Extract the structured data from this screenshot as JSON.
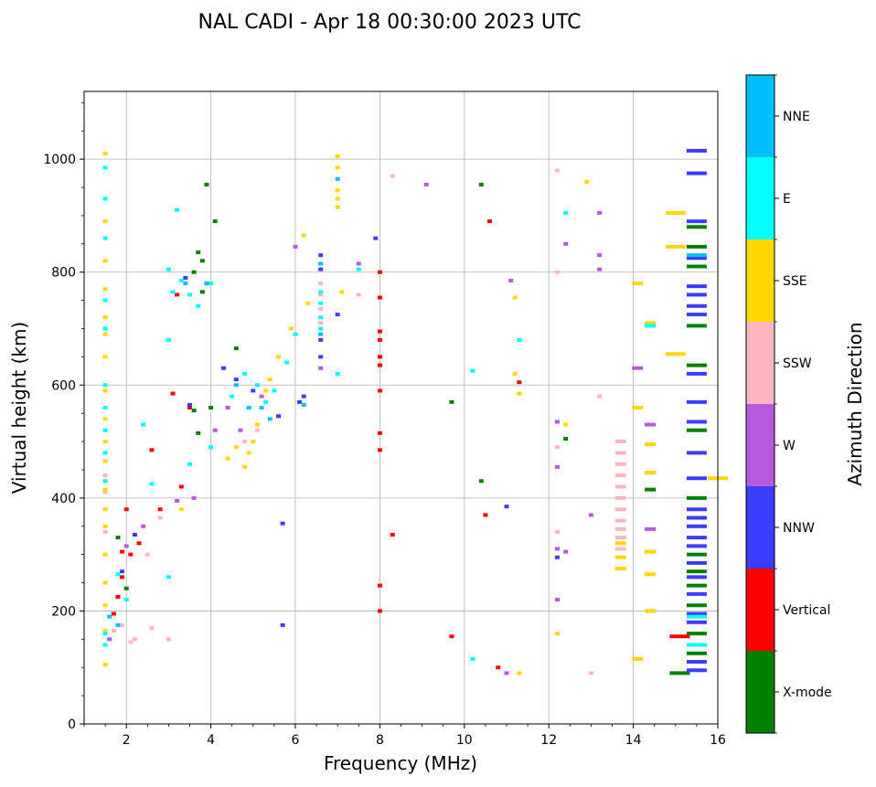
{
  "chart_data": {
    "type": "scatter",
    "title": "NAL CADI - Apr 18 00:30:00 2023 UTC",
    "xlabel": "Frequency (MHz)",
    "ylabel": "Virtual height (km)",
    "xlim": [
      1,
      16
    ],
    "ylim": [
      0,
      1120
    ],
    "xticks": [
      2,
      4,
      6,
      8,
      10,
      12,
      14,
      16
    ],
    "yticks": [
      0,
      200,
      400,
      600,
      800,
      1000
    ],
    "grid": true,
    "colorbar": {
      "title": "Azimuth Direction",
      "categories": [
        {
          "name": "X-mode",
          "color": "#008000"
        },
        {
          "name": "Vertical",
          "color": "#ff0000"
        },
        {
          "name": "NNW",
          "color": "#3c3cff"
        },
        {
          "name": "W",
          "color": "#b45adc"
        },
        {
          "name": "SSW",
          "color": "#ffb6c1"
        },
        {
          "name": "SSE",
          "color": "#ffd700"
        },
        {
          "name": "E",
          "color": "#00ffff"
        },
        {
          "name": "NNE",
          "color": "#00bfff"
        }
      ]
    },
    "series": [
      {
        "name": "X-mode",
        "points": [
          [
            3.9,
            955
          ],
          [
            3.7,
            835
          ],
          [
            3.8,
            820
          ],
          [
            3.6,
            800
          ],
          [
            3.9,
            780
          ],
          [
            3.8,
            765
          ],
          [
            4.1,
            890
          ],
          [
            4.0,
            560
          ],
          [
            4.6,
            665
          ],
          [
            10.4,
            955
          ],
          [
            10.4,
            430
          ],
          [
            14.4,
            415
          ],
          [
            15.1,
            90
          ],
          [
            15.5,
            880
          ],
          [
            15.5,
            845
          ],
          [
            15.5,
            810
          ],
          [
            15.5,
            705
          ],
          [
            15.5,
            635
          ],
          [
            15.5,
            520
          ],
          [
            15.5,
            400
          ],
          [
            15.5,
            300
          ],
          [
            15.5,
            270
          ],
          [
            15.5,
            245
          ],
          [
            15.5,
            210
          ],
          [
            15.5,
            160
          ],
          [
            15.5,
            125
          ],
          [
            12.4,
            505
          ],
          [
            9.7,
            570
          ],
          [
            3.6,
            555
          ],
          [
            3.7,
            515
          ],
          [
            1.8,
            330
          ],
          [
            2.0,
            240
          ]
        ]
      },
      {
        "name": "Vertical",
        "points": [
          [
            2.1,
            300
          ],
          [
            2.3,
            320
          ],
          [
            2.6,
            485
          ],
          [
            2.8,
            380
          ],
          [
            3.1,
            585
          ],
          [
            3.3,
            420
          ],
          [
            2.0,
            380
          ],
          [
            1.7,
            195
          ],
          [
            1.8,
            225
          ],
          [
            1.9,
            260
          ],
          [
            8.0,
            800
          ],
          [
            8.0,
            755
          ],
          [
            8.0,
            695
          ],
          [
            8.0,
            680
          ],
          [
            8.0,
            650
          ],
          [
            8.0,
            635
          ],
          [
            8.0,
            590
          ],
          [
            8.0,
            515
          ],
          [
            8.0,
            485
          ],
          [
            8.0,
            245
          ],
          [
            8.0,
            200
          ],
          [
            8.3,
            335
          ],
          [
            9.7,
            155
          ],
          [
            10.5,
            370
          ],
          [
            10.6,
            890
          ],
          [
            10.8,
            100
          ],
          [
            11.3,
            605
          ],
          [
            15.1,
            155
          ],
          [
            3.5,
            560
          ],
          [
            3.2,
            760
          ],
          [
            1.9,
            305
          ]
        ]
      },
      {
        "name": "NNW",
        "points": [
          [
            3.4,
            790
          ],
          [
            3.5,
            565
          ],
          [
            4.3,
            630
          ],
          [
            4.6,
            610
          ],
          [
            5.0,
            590
          ],
          [
            5.6,
            545
          ],
          [
            6.2,
            580
          ],
          [
            6.1,
            570
          ],
          [
            6.6,
            830
          ],
          [
            6.6,
            805
          ],
          [
            6.6,
            680
          ],
          [
            6.6,
            650
          ],
          [
            5.7,
            175
          ],
          [
            5.7,
            355
          ],
          [
            7.0,
            725
          ],
          [
            7.9,
            860
          ],
          [
            11.0,
            385
          ],
          [
            12.2,
            295
          ],
          [
            15.5,
            1015
          ],
          [
            15.5,
            975
          ],
          [
            15.5,
            890
          ],
          [
            15.5,
            825
          ],
          [
            15.5,
            775
          ],
          [
            15.5,
            760
          ],
          [
            15.5,
            740
          ],
          [
            15.5,
            725
          ],
          [
            15.5,
            620
          ],
          [
            15.5,
            570
          ],
          [
            15.5,
            535
          ],
          [
            15.5,
            480
          ],
          [
            15.5,
            435
          ],
          [
            15.5,
            380
          ],
          [
            15.5,
            365
          ],
          [
            15.5,
            350
          ],
          [
            15.5,
            330
          ],
          [
            15.5,
            315
          ],
          [
            15.5,
            285
          ],
          [
            15.5,
            260
          ],
          [
            15.5,
            230
          ],
          [
            15.5,
            195
          ],
          [
            15.5,
            180
          ],
          [
            15.5,
            110
          ],
          [
            15.5,
            95
          ],
          [
            1.9,
            270
          ],
          [
            2.2,
            335
          ]
        ]
      },
      {
        "name": "W",
        "points": [
          [
            2.0,
            315
          ],
          [
            2.4,
            350
          ],
          [
            3.2,
            395
          ],
          [
            3.6,
            400
          ],
          [
            4.4,
            560
          ],
          [
            4.7,
            520
          ],
          [
            6.0,
            845
          ],
          [
            6.6,
            630
          ],
          [
            7.5,
            815
          ],
          [
            9.1,
            955
          ],
          [
            11.1,
            785
          ],
          [
            11.0,
            90
          ],
          [
            12.2,
            535
          ],
          [
            12.2,
            455
          ],
          [
            12.2,
            310
          ],
          [
            12.2,
            220
          ],
          [
            12.4,
            850
          ],
          [
            12.4,
            305
          ],
          [
            13.0,
            370
          ],
          [
            13.2,
            905
          ],
          [
            13.2,
            830
          ],
          [
            13.2,
            805
          ],
          [
            14.1,
            630
          ],
          [
            14.4,
            530
          ],
          [
            14.4,
            345
          ],
          [
            4.1,
            520
          ],
          [
            1.6,
            150
          ],
          [
            5.2,
            580
          ]
        ]
      },
      {
        "name": "SSW",
        "points": [
          [
            2.1,
            145
          ],
          [
            2.2,
            150
          ],
          [
            2.6,
            170
          ],
          [
            3.0,
            150
          ],
          [
            2.5,
            300
          ],
          [
            2.8,
            365
          ],
          [
            1.9,
            175
          ],
          [
            1.7,
            165
          ],
          [
            8.3,
            970
          ],
          [
            12.2,
            980
          ],
          [
            12.2,
            800
          ],
          [
            12.2,
            490
          ],
          [
            12.2,
            340
          ],
          [
            13.2,
            580
          ],
          [
            13.0,
            90
          ],
          [
            13.7,
            500
          ],
          [
            13.7,
            480
          ],
          [
            13.7,
            460
          ],
          [
            13.7,
            440
          ],
          [
            13.7,
            420
          ],
          [
            13.7,
            400
          ],
          [
            13.7,
            380
          ],
          [
            13.7,
            360
          ],
          [
            13.7,
            345
          ],
          [
            13.7,
            330
          ],
          [
            13.7,
            310
          ],
          [
            6.6,
            780
          ],
          [
            6.6,
            760
          ],
          [
            6.6,
            735
          ],
          [
            6.6,
            710
          ],
          [
            7.5,
            760
          ],
          [
            5.1,
            520
          ],
          [
            4.8,
            500
          ],
          [
            1.5,
            440
          ],
          [
            1.5,
            410
          ],
          [
            1.5,
            340
          ]
        ]
      },
      {
        "name": "SSE",
        "points": [
          [
            1.5,
            1010
          ],
          [
            1.5,
            890
          ],
          [
            1.5,
            820
          ],
          [
            1.5,
            770
          ],
          [
            1.5,
            720
          ],
          [
            1.5,
            690
          ],
          [
            1.5,
            650
          ],
          [
            1.5,
            590
          ],
          [
            1.5,
            540
          ],
          [
            1.5,
            500
          ],
          [
            1.5,
            465
          ],
          [
            1.5,
            415
          ],
          [
            1.5,
            380
          ],
          [
            1.5,
            350
          ],
          [
            1.5,
            300
          ],
          [
            1.5,
            250
          ],
          [
            1.5,
            210
          ],
          [
            1.5,
            165
          ],
          [
            1.5,
            105
          ],
          [
            7.0,
            1005
          ],
          [
            7.0,
            985
          ],
          [
            7.0,
            945
          ],
          [
            7.0,
            930
          ],
          [
            7.0,
            915
          ],
          [
            4.8,
            455
          ],
          [
            4.9,
            480
          ],
          [
            5.0,
            500
          ],
          [
            5.1,
            530
          ],
          [
            5.2,
            560
          ],
          [
            5.3,
            590
          ],
          [
            5.4,
            610
          ],
          [
            5.6,
            650
          ],
          [
            5.9,
            700
          ],
          [
            6.2,
            865
          ],
          [
            6.3,
            745
          ],
          [
            7.1,
            765
          ],
          [
            11.2,
            755
          ],
          [
            11.2,
            620
          ],
          [
            11.3,
            585
          ],
          [
            11.3,
            90
          ],
          [
            12.2,
            160
          ],
          [
            12.4,
            530
          ],
          [
            12.9,
            960
          ],
          [
            14.1,
            780
          ],
          [
            14.1,
            560
          ],
          [
            14.1,
            115
          ],
          [
            14.4,
            710
          ],
          [
            14.4,
            495
          ],
          [
            14.4,
            445
          ],
          [
            14.4,
            305
          ],
          [
            14.4,
            265
          ],
          [
            14.4,
            200
          ],
          [
            15.0,
            905
          ],
          [
            15.0,
            845
          ],
          [
            15.0,
            655
          ],
          [
            16.0,
            435
          ],
          [
            13.7,
            320
          ],
          [
            13.7,
            295
          ],
          [
            13.7,
            275
          ],
          [
            4.4,
            470
          ],
          [
            4.6,
            490
          ],
          [
            3.3,
            380
          ]
        ]
      },
      {
        "name": "E",
        "points": [
          [
            1.5,
            985
          ],
          [
            1.5,
            930
          ],
          [
            1.5,
            860
          ],
          [
            1.5,
            750
          ],
          [
            1.5,
            700
          ],
          [
            1.5,
            600
          ],
          [
            1.5,
            560
          ],
          [
            1.5,
            520
          ],
          [
            1.5,
            480
          ],
          [
            1.5,
            430
          ],
          [
            1.5,
            160
          ],
          [
            1.5,
            140
          ],
          [
            3.2,
            910
          ],
          [
            3.0,
            805
          ],
          [
            3.1,
            765
          ],
          [
            3.0,
            680
          ],
          [
            3.0,
            260
          ],
          [
            3.3,
            785
          ],
          [
            3.5,
            760
          ],
          [
            3.7,
            740
          ],
          [
            4.0,
            780
          ],
          [
            4.5,
            580
          ],
          [
            4.8,
            620
          ],
          [
            5.1,
            600
          ],
          [
            5.3,
            570
          ],
          [
            5.5,
            590
          ],
          [
            5.8,
            640
          ],
          [
            6.0,
            690
          ],
          [
            6.6,
            765
          ],
          [
            6.6,
            745
          ],
          [
            6.6,
            720
          ],
          [
            6.6,
            700
          ],
          [
            7.0,
            620
          ],
          [
            7.5,
            805
          ],
          [
            10.2,
            625
          ],
          [
            10.2,
            115
          ],
          [
            11.3,
            680
          ],
          [
            12.4,
            905
          ],
          [
            14.4,
            705
          ],
          [
            15.5,
            190
          ],
          [
            15.5,
            140
          ],
          [
            2.0,
            220
          ],
          [
            1.8,
            265
          ],
          [
            2.4,
            530
          ],
          [
            4.0,
            490
          ],
          [
            3.5,
            460
          ],
          [
            2.6,
            425
          ]
        ]
      },
      {
        "name": "NNE",
        "points": [
          [
            3.4,
            780
          ],
          [
            6.6,
            815
          ],
          [
            6.2,
            565
          ],
          [
            7.0,
            965
          ],
          [
            5.4,
            540
          ],
          [
            5.2,
            560
          ],
          [
            4.9,
            560
          ],
          [
            4.6,
            600
          ],
          [
            3.9,
            780
          ],
          [
            15.5,
            830
          ],
          [
            6.6,
            690
          ],
          [
            1.8,
            175
          ],
          [
            1.6,
            190
          ]
        ]
      }
    ]
  }
}
